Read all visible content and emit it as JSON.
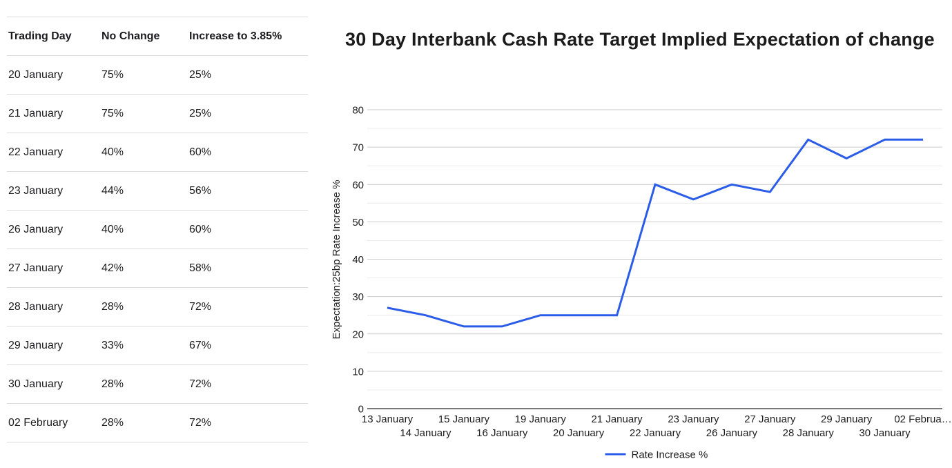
{
  "table": {
    "columns": [
      "Trading Day",
      "No Change",
      "Increase to 3.85%"
    ],
    "rows": [
      [
        "20 January",
        "75%",
        "25%"
      ],
      [
        "21 January",
        "75%",
        "25%"
      ],
      [
        "22 January",
        "40%",
        "60%"
      ],
      [
        "23 January",
        "44%",
        "56%"
      ],
      [
        "26 January",
        "40%",
        "60%"
      ],
      [
        "27 January",
        "42%",
        "58%"
      ],
      [
        "28 January",
        "28%",
        "72%"
      ],
      [
        "29 January",
        "33%",
        "67%"
      ],
      [
        "30 January",
        "28%",
        "72%"
      ],
      [
        "02 February",
        "28%",
        "72%"
      ]
    ]
  },
  "chart_data": {
    "type": "line",
    "title": "30 Day Interbank Cash Rate Target Implied Expectation of change",
    "xlabel": "",
    "ylabel": "Expectation:25bp Rate Increase %",
    "ylim": [
      0,
      80
    ],
    "y_tick_step": 10,
    "y_minor_step": 5,
    "grid": true,
    "legend_position": "bottom",
    "x": [
      "13 January",
      "14 January",
      "15 January",
      "16 January",
      "19 January",
      "20 January",
      "21 January",
      "22 January",
      "23 January",
      "26 January",
      "27 January",
      "28 January",
      "29 January",
      "30 January",
      "02 February"
    ],
    "x_tick_labels": [
      "13 January",
      "14 January",
      "15 January",
      "16 January",
      "19 January",
      "20 January",
      "21 January",
      "22 January",
      "23 January",
      "26 January",
      "27 January",
      "28 January",
      "29 January",
      "30 January",
      "02 Februa…"
    ],
    "series": [
      {
        "name": "Rate Increase %",
        "values": [
          27,
          25,
          22,
          22,
          25,
          25,
          25,
          60,
          56,
          60,
          58,
          72,
          67,
          72,
          72
        ]
      }
    ]
  },
  "colors": {
    "line": "#2b5ce8",
    "grid_major": "#cccccc",
    "grid_minor": "#ececec",
    "baseline": "#4d4d4d",
    "text": "#1e1e1e"
  }
}
